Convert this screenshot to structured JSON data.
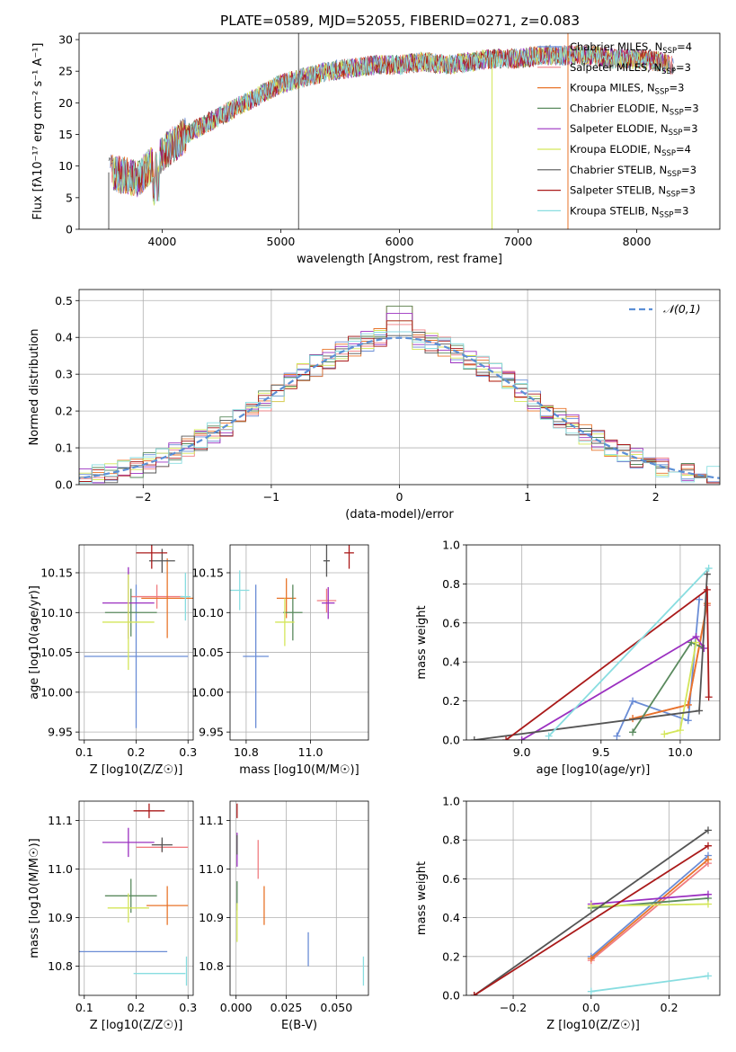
{
  "figure_title": "PLATE=0589, MJD=52055, FIBERID=0271, z=0.083",
  "series_styles": [
    {
      "name": "Chabrier MILES",
      "color": "#6b8dd6"
    },
    {
      "name": "Salpeter MILES",
      "color": "#f07c80"
    },
    {
      "name": "Kroupa MILES",
      "color": "#e8742a"
    },
    {
      "name": "Chabrier ELODIE",
      "color": "#5a8a5e"
    },
    {
      "name": "Salpeter ELODIE",
      "color": "#9b30c0"
    },
    {
      "name": "Kroupa ELODIE",
      "color": "#d4e65a"
    },
    {
      "name": "Chabrier STELIB",
      "color": "#555555"
    },
    {
      "name": "Salpeter STELIB",
      "color": "#aa1a1a"
    },
    {
      "name": "Kroupa STELIB",
      "color": "#88dde0"
    }
  ],
  "chart_data": [
    {
      "id": "spectrum",
      "type": "line",
      "title": "PLATE=0589, MJD=52055, FIBERID=0271, z=0.083",
      "xlabel": "wavelength [Angstrom, rest frame]",
      "ylabel": "Flux [fλ10⁻¹⁷ erg cm⁻² s⁻¹ A⁻¹]",
      "xlim": [
        3300,
        8700
      ],
      "ylim": [
        0,
        31
      ],
      "xticks": [
        4000,
        5000,
        6000,
        7000,
        8000
      ],
      "yticks": [
        0,
        5,
        10,
        15,
        20,
        25,
        30
      ],
      "grid": false,
      "legend": "top-right",
      "continuum_x": [
        3550,
        3800,
        4000,
        4200,
        4400,
        4600,
        4800,
        5000,
        5200,
        5400,
        5600,
        5800,
        6000,
        6200,
        6400,
        6600,
        6800,
        7000,
        7200,
        7400,
        7600,
        7800,
        8000,
        8200,
        8300
      ],
      "continuum_y": [
        9,
        8,
        12,
        15,
        17,
        19,
        21,
        23,
        24,
        25,
        25.5,
        26,
        26,
        26.5,
        26,
        26.5,
        27,
        27,
        27.5,
        27.5,
        27.5,
        27,
        27,
        26.5,
        26
      ],
      "legend_entries": [
        "Chabrier MILES, N_SSP=4",
        "Salpeter MILES, N_SSP=3",
        "Kroupa MILES, N_SSP=3",
        "Chabrier ELODIE, N_SSP=3",
        "Salpeter ELODIE, N_SSP=3",
        "Kroupa ELODIE, N_SSP=4",
        "Chabrier STELIB, N_SSP=3",
        "Salpeter STELIB, N_SSP=3",
        "Kroupa STELIB, N_SSP=3"
      ]
    },
    {
      "id": "residuals",
      "type": "histogram",
      "xlabel": "(data-model)/error",
      "ylabel": "Normed distribution",
      "xlim": [
        -2.5,
        2.5
      ],
      "ylim": [
        0,
        0.53
      ],
      "xticks": [
        -2,
        -1,
        0,
        1,
        2
      ],
      "yticks": [
        0.0,
        0.1,
        0.2,
        0.3,
        0.4,
        0.5
      ],
      "grid": true,
      "legend": "top-right",
      "reference_curve": "𝒩(0,1)",
      "bin_width": 0.1,
      "peak_values": [
        0.43,
        0.45,
        0.5,
        0.5,
        0.48,
        0.46,
        0.42,
        0.46,
        0.43
      ]
    },
    {
      "id": "age-vs-z",
      "type": "errorbar",
      "xlabel": "Z [log10(Z/Z☉)]",
      "ylabel": "age [log10(age/yr)]",
      "xlim": [
        0.09,
        0.31
      ],
      "ylim": [
        9.94,
        10.185
      ],
      "xticks": [
        0.1,
        0.2,
        0.3
      ],
      "yticks": [
        9.95,
        10.0,
        10.05,
        10.1,
        10.15
      ],
      "grid": true,
      "points": [
        {
          "series": "Chabrier MILES",
          "x": 0.2,
          "xerr": 0.1,
          "y": 10.045,
          "yerr": 0.09
        },
        {
          "series": "Salpeter MILES",
          "x": 0.24,
          "xerr": 0.05,
          "y": 10.12,
          "yerr": 0.015
        },
        {
          "series": "Kroupa MILES",
          "x": 0.26,
          "xerr": 0.05,
          "y": 10.118,
          "yerr": 0.05
        },
        {
          "series": "Chabrier ELODIE",
          "x": 0.19,
          "xerr": 0.05,
          "y": 10.1,
          "yerr": 0.03
        },
        {
          "series": "Salpeter ELODIE",
          "x": 0.185,
          "xerr": 0.05,
          "y": 10.112,
          "yerr": 0.045
        },
        {
          "series": "Kroupa ELODIE",
          "x": 0.185,
          "xerr": 0.05,
          "y": 10.088,
          "yerr": 0.06
        },
        {
          "series": "Chabrier STELIB",
          "x": 0.25,
          "xerr": 0.025,
          "y": 10.165,
          "yerr": 0.015
        },
        {
          "series": "Salpeter STELIB",
          "x": 0.23,
          "xerr": 0.03,
          "y": 10.175,
          "yerr": 0.02
        },
        {
          "series": "Kroupa STELIB",
          "x": 0.295,
          "xerr": 0.01,
          "y": 10.12,
          "yerr": 0.03
        }
      ]
    },
    {
      "id": "age-vs-mass",
      "type": "errorbar",
      "xlabel": "mass [log10(M/M☉)]",
      "ylabel": "",
      "xlim": [
        10.75,
        11.18
      ],
      "ylim": [
        9.94,
        10.185
      ],
      "xticks": [
        10.8,
        11.0
      ],
      "yticks": [
        9.95,
        10.0,
        10.05,
        10.1,
        10.15
      ],
      "grid": true,
      "points": [
        {
          "series": "Chabrier MILES",
          "x": 10.83,
          "xerr": 0.04,
          "y": 10.045,
          "yerr": 0.09
        },
        {
          "series": "Salpeter MILES",
          "x": 11.05,
          "xerr": 0.03,
          "y": 10.115,
          "yerr": 0.015
        },
        {
          "series": "Kroupa MILES",
          "x": 10.925,
          "xerr": 0.03,
          "y": 10.118,
          "yerr": 0.025
        },
        {
          "series": "Chabrier ELODIE",
          "x": 10.945,
          "xerr": 0.03,
          "y": 10.1,
          "yerr": 0.035
        },
        {
          "series": "Salpeter ELODIE",
          "x": 11.055,
          "xerr": 0.02,
          "y": 10.112,
          "yerr": 0.02
        },
        {
          "series": "Kroupa ELODIE",
          "x": 10.92,
          "xerr": 0.03,
          "y": 10.088,
          "yerr": 0.03
        },
        {
          "series": "Chabrier STELIB",
          "x": 11.05,
          "xerr": 0.01,
          "y": 10.165,
          "yerr": 0.02
        },
        {
          "series": "Salpeter STELIB",
          "x": 11.12,
          "xerr": 0.015,
          "y": 10.175,
          "yerr": 0.02
        },
        {
          "series": "Kroupa STELIB",
          "x": 10.78,
          "xerr": 0.03,
          "y": 10.128,
          "yerr": 0.025
        }
      ]
    },
    {
      "id": "mass-weight-vs-age",
      "type": "line",
      "xlabel": "age [log10(age/yr)]",
      "ylabel": "mass weight",
      "xlim": [
        8.65,
        10.25
      ],
      "ylim": [
        0,
        1.0
      ],
      "xticks": [
        9.0,
        9.5,
        10.0
      ],
      "yticks": [
        0.0,
        0.2,
        0.4,
        0.6,
        0.8,
        1.0
      ],
      "grid": true,
      "series": [
        {
          "name": "Chabrier MILES",
          "x": [
            9.6,
            9.7,
            10.05,
            10.12
          ],
          "y": [
            0.02,
            0.2,
            0.1,
            0.72
          ]
        },
        {
          "name": "Salpeter MILES",
          "x": [
            9.7,
            10.05,
            10.17
          ],
          "y": [
            0.11,
            0.18,
            0.69
          ]
        },
        {
          "name": "Kroupa MILES",
          "x": [
            9.7,
            10.05,
            10.17
          ],
          "y": [
            0.11,
            0.18,
            0.7
          ]
        },
        {
          "name": "Chabrier ELODIE",
          "x": [
            9.7,
            10.07,
            10.15
          ],
          "y": [
            0.04,
            0.5,
            0.47
          ]
        },
        {
          "name": "Salpeter ELODIE",
          "x": [
            9.0,
            10.1,
            10.15
          ],
          "y": [
            0.0,
            0.53,
            0.47
          ]
        },
        {
          "name": "Kroupa ELODIE",
          "x": [
            9.9,
            10.0,
            10.1
          ],
          "y": [
            0.03,
            0.05,
            0.5
          ]
        },
        {
          "name": "Chabrier STELIB",
          "x": [
            8.7,
            10.12,
            10.17
          ],
          "y": [
            0.0,
            0.15,
            0.85
          ]
        },
        {
          "name": "Salpeter STELIB",
          "x": [
            8.9,
            10.17,
            10.18
          ],
          "y": [
            0.0,
            0.77,
            0.22
          ]
        },
        {
          "name": "Kroupa STELIB",
          "x": [
            9.17,
            10.18
          ],
          "y": [
            0.02,
            0.88
          ]
        }
      ]
    },
    {
      "id": "mass-vs-z",
      "type": "errorbar",
      "xlabel": "Z [log10(Z/Z☉)]",
      "ylabel": "mass [log10(M/M☉)]",
      "xlim": [
        0.09,
        0.31
      ],
      "ylim": [
        10.74,
        11.14
      ],
      "xticks": [
        0.1,
        0.2,
        0.3
      ],
      "yticks": [
        10.8,
        10.9,
        11.0,
        11.1
      ],
      "grid": true,
      "points": [
        {
          "series": "Chabrier MILES",
          "x": 0.17,
          "xerr": 0.09,
          "y": 10.83,
          "yerr": 0.0
        },
        {
          "series": "Salpeter MILES",
          "x": 0.25,
          "xerr": 0.05,
          "y": 11.045,
          "yerr": 0.01
        },
        {
          "series": "Kroupa MILES",
          "x": 0.26,
          "xerr": 0.04,
          "y": 10.925,
          "yerr": 0.04
        },
        {
          "series": "Chabrier ELODIE",
          "x": 0.19,
          "xerr": 0.05,
          "y": 10.945,
          "yerr": 0.035
        },
        {
          "series": "Salpeter ELODIE",
          "x": 0.185,
          "xerr": 0.05,
          "y": 11.055,
          "yerr": 0.03
        },
        {
          "series": "Kroupa ELODIE",
          "x": 0.185,
          "xerr": 0.04,
          "y": 10.92,
          "yerr": 0.03
        },
        {
          "series": "Chabrier STELIB",
          "x": 0.25,
          "xerr": 0.02,
          "y": 11.05,
          "yerr": 0.015
        },
        {
          "series": "Salpeter STELIB",
          "x": 0.225,
          "xerr": 0.03,
          "y": 11.12,
          "yerr": 0.015
        },
        {
          "series": "Kroupa STELIB",
          "x": 0.245,
          "xerr": 0.05,
          "y": 10.785,
          "yerr": 0.0
        },
        {
          "series": "Kroupa STELIB",
          "x": 0.297,
          "xerr": 0.0,
          "y": 10.79,
          "yerr": 0.03
        }
      ]
    },
    {
      "id": "mass-vs-ebv",
      "type": "errorbar",
      "xlabel": "E(B-V)",
      "ylabel": "",
      "xlim": [
        -0.003,
        0.066
      ],
      "ylim": [
        10.74,
        11.14
      ],
      "xticks": [
        0.0,
        0.025,
        0.05
      ],
      "yticks": [
        10.8,
        10.9,
        11.0,
        11.1
      ],
      "xticklabels": [
        "0.000",
        "0.025",
        "0.050"
      ],
      "grid": true,
      "points": [
        {
          "series": "Chabrier MILES",
          "x": 0.036,
          "y": 10.835,
          "yerr": 0.035
        },
        {
          "series": "Salpeter MILES",
          "x": 0.011,
          "y": 11.02,
          "yerr": 0.04
        },
        {
          "series": "Kroupa MILES",
          "x": 0.014,
          "y": 10.925,
          "yerr": 0.04
        },
        {
          "series": "Chabrier ELODIE",
          "x": 0.0005,
          "y": 10.945,
          "yerr": 0.03
        },
        {
          "series": "Salpeter ELODIE",
          "x": 0.0005,
          "y": 11.04,
          "yerr": 0.035
        },
        {
          "series": "Kroupa ELODIE",
          "x": 0.0005,
          "y": 10.89,
          "yerr": 0.04
        },
        {
          "series": "Chabrier STELIB",
          "x": 0.0005,
          "y": 11.05,
          "yerr": 0.02
        },
        {
          "series": "Salpeter STELIB",
          "x": 0.0005,
          "y": 11.12,
          "yerr": 0.015
        },
        {
          "series": "Kroupa STELIB",
          "x": 0.0635,
          "y": 10.79,
          "yerr": 0.03
        }
      ]
    },
    {
      "id": "mass-weight-vs-z",
      "type": "line",
      "xlabel": "Z [log10(Z/Z☉)]",
      "ylabel": "mass weight",
      "xlim": [
        -0.32,
        0.33
      ],
      "ylim": [
        0,
        1.0
      ],
      "xticks": [
        -0.2,
        0.0,
        0.2
      ],
      "yticks": [
        0.0,
        0.2,
        0.4,
        0.6,
        0.8,
        1.0
      ],
      "grid": true,
      "series": [
        {
          "name": "Chabrier MILES",
          "x": [
            0.0,
            0.3
          ],
          "y": [
            0.2,
            0.72
          ]
        },
        {
          "name": "Salpeter MILES",
          "x": [
            0.0,
            0.3
          ],
          "y": [
            0.18,
            0.68
          ]
        },
        {
          "name": "Kroupa MILES",
          "x": [
            0.0,
            0.3
          ],
          "y": [
            0.19,
            0.7
          ]
        },
        {
          "name": "Chabrier ELODIE",
          "x": [
            0.0,
            0.3
          ],
          "y": [
            0.45,
            0.5
          ]
        },
        {
          "name": "Salpeter ELODIE",
          "x": [
            0.0,
            0.3
          ],
          "y": [
            0.47,
            0.52
          ]
        },
        {
          "name": "Kroupa ELODIE",
          "x": [
            0.0,
            0.3
          ],
          "y": [
            0.46,
            0.47
          ]
        },
        {
          "name": "Chabrier STELIB",
          "x": [
            -0.3,
            0.3
          ],
          "y": [
            0.0,
            0.85
          ]
        },
        {
          "name": "Salpeter STELIB",
          "x": [
            -0.3,
            0.3
          ],
          "y": [
            0.0,
            0.77
          ]
        },
        {
          "name": "Kroupa STELIB",
          "x": [
            0.0,
            0.3
          ],
          "y": [
            0.02,
            0.1
          ]
        }
      ]
    }
  ]
}
